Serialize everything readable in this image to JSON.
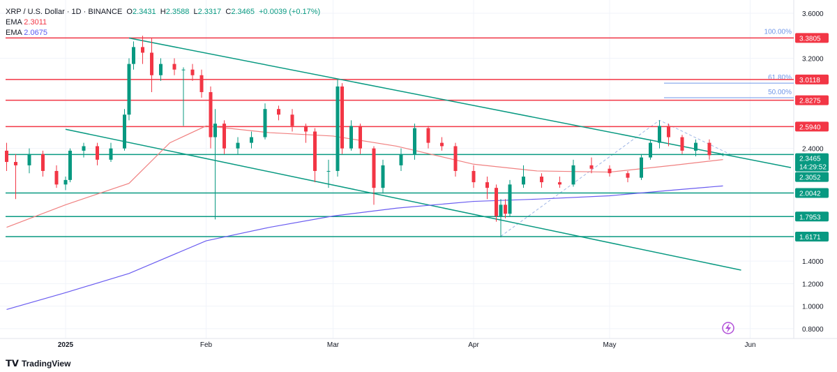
{
  "header": {
    "symbol": "XRP / U.S. Dollar · 1D · BINANCE",
    "open_label": "O",
    "open": "2.3431",
    "high_label": "H",
    "high": "2.3588",
    "low_label": "L",
    "low": "2.3317",
    "close_label": "C",
    "close": "2.3465",
    "change": "+0.0039 (+0.17%)",
    "ema1_label": "EMA",
    "ema1_value": "2.3011",
    "ema2_label": "EMA",
    "ema2_value": "2.0675"
  },
  "brand": "TradingView",
  "countdown": "14:29:52",
  "colors": {
    "up": "#089981",
    "down": "#f23645",
    "ema1": "#f08080",
    "ema2": "#6a5cf0",
    "fib": "#6f96e8",
    "resistance": "#f23645",
    "support": "#089981"
  },
  "chart_data": {
    "type": "candlestick",
    "ylim": [
      0.7,
      3.65
    ],
    "y_ticks": [
      "3.6000",
      "3.2000",
      "2.4000",
      "1.4000",
      "1.2000",
      "1.0000",
      "0.8000"
    ],
    "x_ticks": [
      {
        "label": "2025",
        "date": "2025-01-01"
      },
      {
        "label": "Feb",
        "date": "2025-02-01"
      },
      {
        "label": "Mar",
        "date": "2025-03-01"
      },
      {
        "label": "Apr",
        "date": "2025-04-01"
      },
      {
        "label": "May",
        "date": "2025-05-01"
      },
      {
        "label": "Jun",
        "date": "2025-06-01"
      }
    ],
    "candles": [
      [
        "2024-12-19",
        2.38,
        2.45,
        2.2,
        2.28
      ],
      [
        "2024-12-21",
        2.28,
        2.35,
        1.95,
        2.25
      ],
      [
        "2024-12-24",
        2.25,
        2.4,
        2.18,
        2.35
      ],
      [
        "2024-12-27",
        2.35,
        2.38,
        2.15,
        2.2
      ],
      [
        "2024-12-30",
        2.2,
        2.25,
        2.05,
        2.08
      ],
      [
        "2025-01-01",
        2.08,
        2.15,
        2.03,
        2.12
      ],
      [
        "2025-01-02",
        2.12,
        2.4,
        2.1,
        2.38
      ],
      [
        "2025-01-05",
        2.38,
        2.45,
        2.32,
        2.42
      ],
      [
        "2025-01-08",
        2.42,
        2.45,
        2.25,
        2.3
      ],
      [
        "2025-01-11",
        2.3,
        2.45,
        2.28,
        2.4
      ],
      [
        "2025-01-14",
        2.4,
        2.75,
        2.38,
        2.7
      ],
      [
        "2025-01-15",
        2.7,
        3.2,
        2.65,
        3.15
      ],
      [
        "2025-01-16",
        3.15,
        3.35,
        3.1,
        3.3
      ],
      [
        "2025-01-18",
        3.3,
        3.4,
        3.15,
        3.25
      ],
      [
        "2025-01-20",
        3.25,
        3.38,
        2.9,
        3.05
      ],
      [
        "2025-01-22",
        3.05,
        3.2,
        3.0,
        3.15
      ],
      [
        "2025-01-25",
        3.15,
        3.2,
        3.05,
        3.1
      ],
      [
        "2025-01-27",
        3.1,
        3.12,
        2.6,
        3.1
      ],
      [
        "2025-01-29",
        3.1,
        3.15,
        3.0,
        3.05
      ],
      [
        "2025-01-31",
        3.05,
        3.1,
        2.85,
        2.9
      ],
      [
        "2025-02-02",
        2.9,
        2.95,
        2.4,
        2.5
      ],
      [
        "2025-02-03",
        2.5,
        2.75,
        1.77,
        2.62
      ],
      [
        "2025-02-05",
        2.62,
        2.65,
        2.35,
        2.4
      ],
      [
        "2025-02-08",
        2.4,
        2.5,
        2.35,
        2.45
      ],
      [
        "2025-02-11",
        2.45,
        2.55,
        2.4,
        2.5
      ],
      [
        "2025-02-14",
        2.5,
        2.8,
        2.48,
        2.75
      ],
      [
        "2025-02-17",
        2.75,
        2.78,
        2.65,
        2.7
      ],
      [
        "2025-02-20",
        2.7,
        2.75,
        2.55,
        2.6
      ],
      [
        "2025-02-23",
        2.6,
        2.62,
        2.45,
        2.55
      ],
      [
        "2025-02-25",
        2.55,
        2.58,
        2.1,
        2.2
      ],
      [
        "2025-02-28",
        2.2,
        2.3,
        2.05,
        2.2
      ],
      [
        "2025-03-02",
        2.2,
        3.02,
        2.15,
        2.95
      ],
      [
        "2025-03-03",
        2.95,
        2.98,
        2.35,
        2.4
      ],
      [
        "2025-03-05",
        2.4,
        2.65,
        2.38,
        2.6
      ],
      [
        "2025-03-07",
        2.6,
        2.62,
        2.35,
        2.4
      ],
      [
        "2025-03-10",
        2.4,
        2.42,
        1.9,
        2.05
      ],
      [
        "2025-03-12",
        2.05,
        2.3,
        2.0,
        2.25
      ],
      [
        "2025-03-16",
        2.25,
        2.4,
        2.2,
        2.35
      ],
      [
        "2025-03-19",
        2.35,
        2.62,
        2.3,
        2.58
      ],
      [
        "2025-03-22",
        2.58,
        2.6,
        2.4,
        2.45
      ],
      [
        "2025-03-25",
        2.45,
        2.5,
        2.38,
        2.42
      ],
      [
        "2025-03-28",
        2.42,
        2.45,
        2.15,
        2.2
      ],
      [
        "2025-04-01",
        2.2,
        2.25,
        2.05,
        2.1
      ],
      [
        "2025-04-04",
        2.1,
        2.15,
        1.95,
        2.05
      ],
      [
        "2025-04-06",
        2.05,
        2.08,
        1.75,
        1.8
      ],
      [
        "2025-04-07",
        1.8,
        1.95,
        1.61,
        1.9
      ],
      [
        "2025-04-08",
        1.9,
        1.95,
        1.78,
        1.82
      ],
      [
        "2025-04-09",
        1.82,
        2.12,
        1.8,
        2.08
      ],
      [
        "2025-04-12",
        2.08,
        2.25,
        2.05,
        2.15
      ],
      [
        "2025-04-16",
        2.15,
        2.18,
        2.05,
        2.1
      ],
      [
        "2025-04-20",
        2.1,
        2.15,
        2.05,
        2.08
      ],
      [
        "2025-04-23",
        2.08,
        2.3,
        2.06,
        2.25
      ],
      [
        "2025-04-27",
        2.25,
        2.32,
        2.18,
        2.22
      ],
      [
        "2025-05-01",
        2.22,
        2.25,
        2.15,
        2.18
      ],
      [
        "2025-05-05",
        2.18,
        2.2,
        2.1,
        2.14
      ],
      [
        "2025-05-08",
        2.14,
        2.35,
        2.12,
        2.32
      ],
      [
        "2025-05-10",
        2.32,
        2.48,
        2.3,
        2.45
      ],
      [
        "2025-05-12",
        2.45,
        2.65,
        2.4,
        2.6
      ],
      [
        "2025-05-14",
        2.6,
        2.62,
        2.42,
        2.5
      ],
      [
        "2025-05-17",
        2.5,
        2.52,
        2.35,
        2.38
      ],
      [
        "2025-05-20",
        2.38,
        2.48,
        2.33,
        2.45
      ],
      [
        "2025-05-23",
        2.45,
        2.48,
        2.3,
        2.34
      ],
      [
        "2025-05-26",
        2.3431,
        2.3588,
        2.3317,
        2.3465
      ]
    ],
    "ema_fast": [
      [
        "2024-12-19",
        1.7
      ],
      [
        "2025-01-01",
        1.9
      ],
      [
        "2025-01-15",
        2.09
      ],
      [
        "2025-01-24",
        2.45
      ],
      [
        "2025-02-01",
        2.6
      ],
      [
        "2025-02-15",
        2.54
      ],
      [
        "2025-03-01",
        2.51
      ],
      [
        "2025-03-15",
        2.42
      ],
      [
        "2025-04-01",
        2.26
      ],
      [
        "2025-04-15",
        2.2
      ],
      [
        "2025-05-01",
        2.19
      ],
      [
        "2025-05-15",
        2.25
      ],
      [
        "2025-05-26",
        2.3011
      ]
    ],
    "ema_slow": [
      [
        "2024-12-19",
        0.97
      ],
      [
        "2025-01-01",
        1.12
      ],
      [
        "2025-01-15",
        1.29
      ],
      [
        "2025-02-01",
        1.58
      ],
      [
        "2025-02-15",
        1.7
      ],
      [
        "2025-03-01",
        1.8
      ],
      [
        "2025-03-15",
        1.87
      ],
      [
        "2025-04-01",
        1.93
      ],
      [
        "2025-04-15",
        1.95
      ],
      [
        "2025-05-01",
        1.98
      ],
      [
        "2025-05-15",
        2.03
      ],
      [
        "2025-05-26",
        2.0675
      ]
    ],
    "resistance_levels": [
      "3.3805",
      "3.0118",
      "2.8275",
      "2.5940"
    ],
    "support_levels": [
      "2.3465",
      "2.0042",
      "1.7953",
      "1.6171"
    ],
    "trendline_label": "2.3052",
    "trendlines": [
      [
        [
          "2025-01-15",
          3.38
        ],
        [
          "2025-06-10",
          2.23
        ]
      ],
      [
        [
          "2025-01-01",
          2.57
        ],
        [
          "2025-05-30",
          1.32
        ]
      ]
    ],
    "fib_path": [
      [
        "2025-04-07",
        1.62
      ],
      [
        "2025-05-12",
        2.65
      ],
      [
        "2025-05-28",
        2.34
      ]
    ],
    "fib_levels": [
      {
        "label": "100.00%",
        "price": 3.3805
      },
      {
        "label": "61.80%",
        "price": 2.98
      },
      {
        "label": "50.00%",
        "price": 2.85
      }
    ]
  }
}
